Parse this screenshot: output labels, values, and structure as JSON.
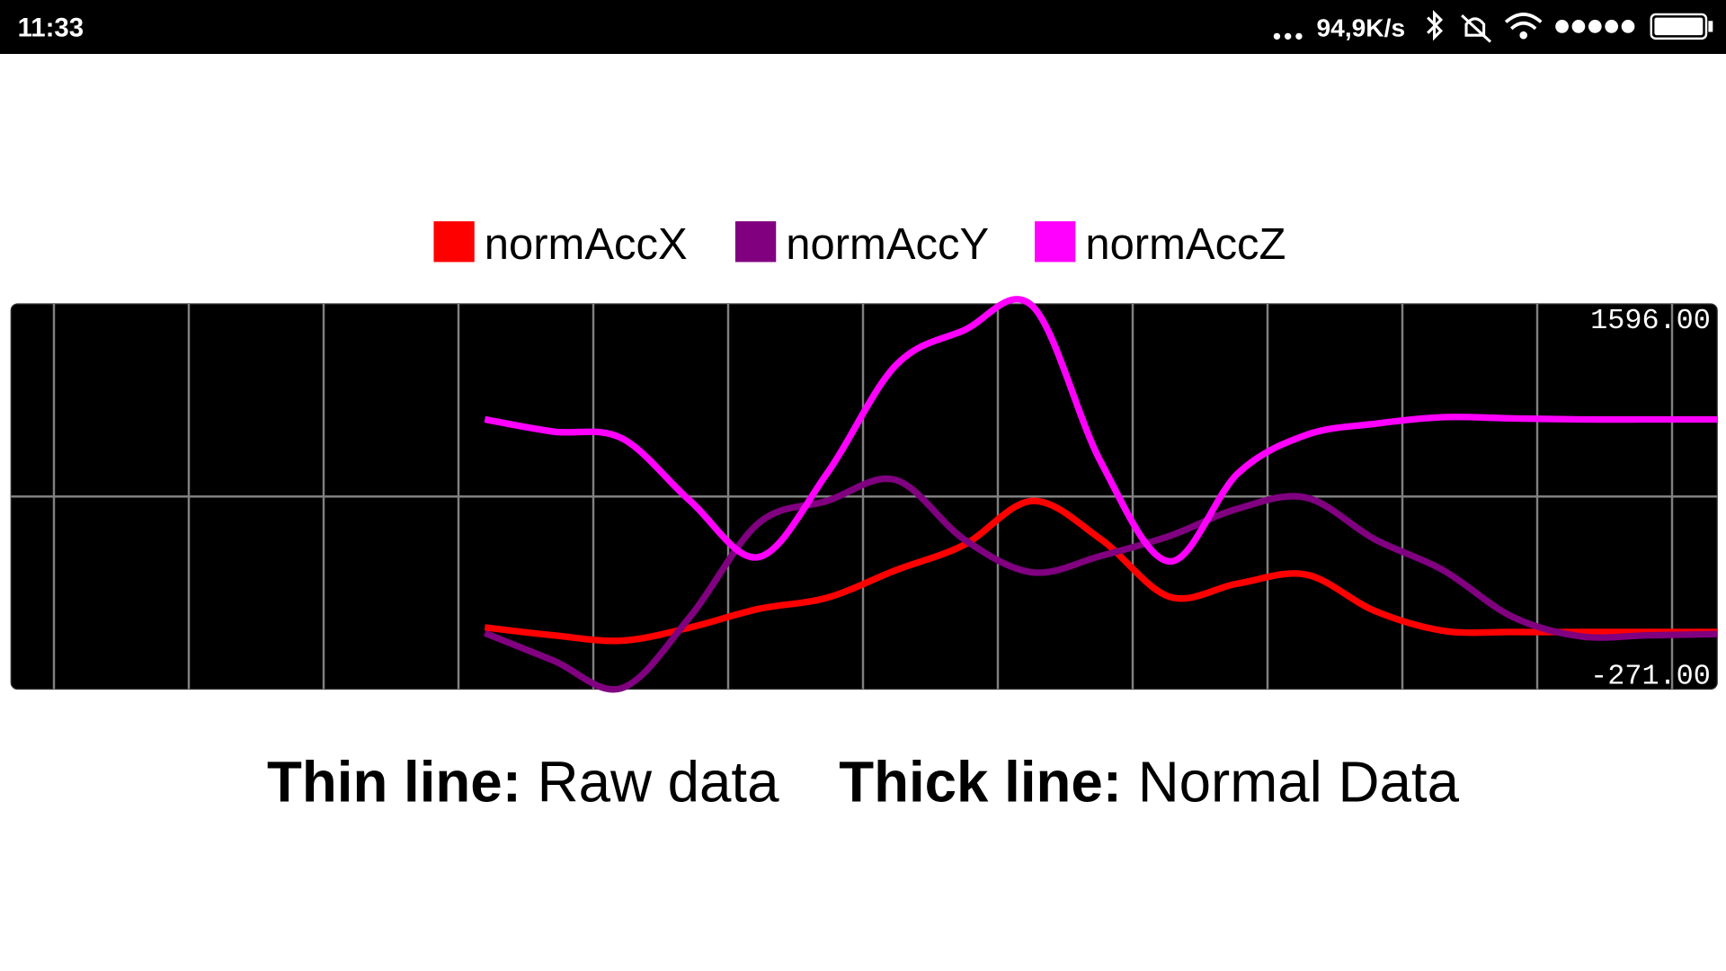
{
  "status_bar": {
    "time": "11:33",
    "speed": "94,9K/s"
  },
  "chart_data": {
    "type": "line",
    "ylim": [
      -271,
      1596
    ],
    "yticks": [
      {
        "value": 1596,
        "label": "1596.00"
      },
      {
        "value": -271,
        "label": "-271.00"
      }
    ],
    "grid": true,
    "legend": "top",
    "series": [
      {
        "name": "normAccX",
        "color": "#ff0000",
        "values": [
          28,
          -10,
          -36,
          28,
          118,
          172,
          305,
          428,
          641,
          455,
          177,
          241,
          284,
          108,
          12,
          6,
          6,
          6,
          6
        ]
      },
      {
        "name": "normAccY",
        "color": "#800080",
        "values": [
          1,
          -132,
          -266,
          81,
          534,
          641,
          743,
          455,
          295,
          375,
          471,
          604,
          657,
          455,
          305,
          81,
          -15,
          -10,
          -4
        ]
      },
      {
        "name": "normAccZ",
        "color": "#ff00ff",
        "values": [
          1036,
          977,
          945,
          641,
          369,
          775,
          1297,
          1468,
          1585,
          828,
          348,
          775,
          961,
          1015,
          1047,
          1041,
          1036,
          1036,
          1036
        ]
      }
    ]
  },
  "footer": {
    "thin_label": "Thin line:",
    "thin_text": "Raw data",
    "thick_label": "Thick line:",
    "thick_text": "Normal Data"
  }
}
